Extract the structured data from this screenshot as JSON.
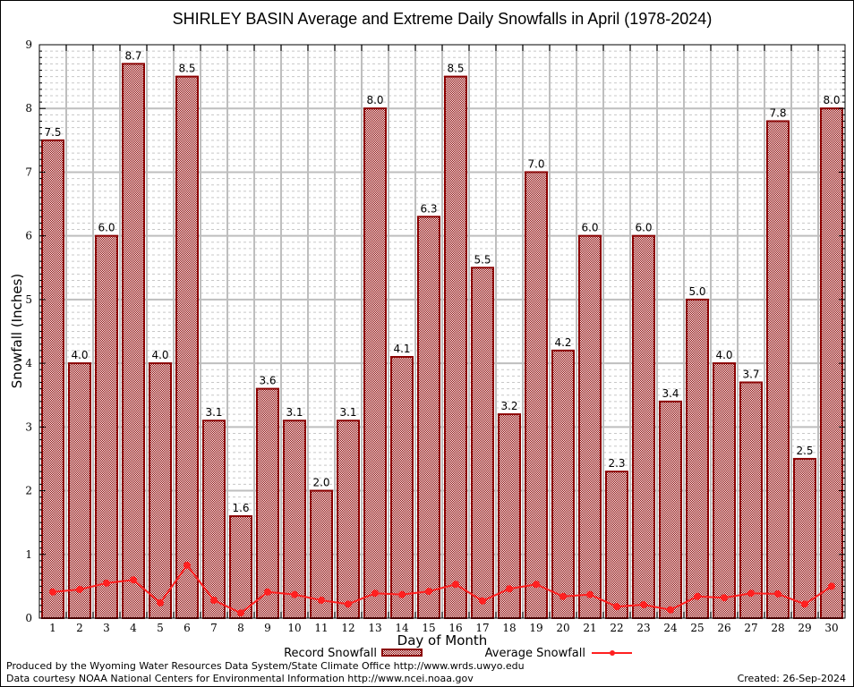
{
  "chart_data": {
    "type": "bar",
    "title": "SHIRLEY BASIN Average and Extreme Daily Snowfalls in April (1978-2024)",
    "xlabel": "Day of Month",
    "ylabel": "Snowfall (Inches)",
    "ylim": [
      0,
      9
    ],
    "yticks": [
      "0",
      "1",
      "2",
      "3",
      "4",
      "5",
      "6",
      "7",
      "8",
      "9"
    ],
    "grid": true,
    "categories": [
      "1",
      "2",
      "3",
      "4",
      "5",
      "6",
      "7",
      "8",
      "9",
      "10",
      "11",
      "12",
      "13",
      "14",
      "15",
      "16",
      "17",
      "18",
      "19",
      "20",
      "21",
      "22",
      "23",
      "24",
      "25",
      "26",
      "27",
      "28",
      "29",
      "30"
    ],
    "series": [
      {
        "name": "Record Snowfall",
        "kind": "bar",
        "values": [
          7.5,
          4.0,
          6.0,
          8.7,
          4.0,
          8.5,
          3.1,
          1.6,
          3.6,
          3.1,
          2.0,
          3.1,
          8.0,
          4.1,
          6.3,
          8.5,
          5.5,
          3.2,
          7.0,
          4.2,
          6.0,
          2.3,
          6.0,
          3.4,
          5.0,
          4.0,
          3.7,
          7.8,
          2.5,
          8.0
        ],
        "labels": [
          "7.5",
          "4.0",
          "6.0",
          "8.7",
          "4.0",
          "8.5",
          "3.1",
          "1.6",
          "3.6",
          "3.1",
          "2.0",
          "3.1",
          "8.0",
          "4.1",
          "6.3",
          "8.5",
          "5.5",
          "3.2",
          "7.0",
          "4.2",
          "6.0",
          "2.3",
          "6.0",
          "3.4",
          "5.0",
          "4.0",
          "3.7",
          "7.8",
          "2.5",
          "8.0"
        ],
        "color": "#8b0000"
      },
      {
        "name": "Average Snowfall",
        "kind": "line",
        "values": [
          0.41,
          0.45,
          0.55,
          0.6,
          0.24,
          0.83,
          0.28,
          0.08,
          0.41,
          0.37,
          0.28,
          0.22,
          0.39,
          0.37,
          0.42,
          0.53,
          0.27,
          0.46,
          0.53,
          0.34,
          0.37,
          0.18,
          0.21,
          0.13,
          0.34,
          0.32,
          0.39,
          0.38,
          0.22,
          0.5
        ],
        "color": "#ff2020"
      }
    ],
    "legend": [
      "Record Snowfall",
      "Average Snowfall"
    ],
    "legend_position": "bottom"
  },
  "footer": {
    "produced_by": "Produced by the Wyoming Water Resources Data System/State Climate Office http://www.wrds.uwyo.edu",
    "data_courtesy": "Data courtesy NOAA National Centers for Environmental Information http://www.ncei.noaa.gov",
    "created": "Created: 26-Sep-2024"
  }
}
